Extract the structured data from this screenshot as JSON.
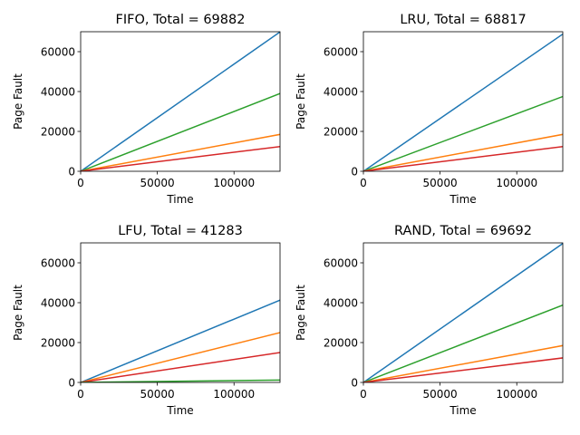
{
  "chart_data": [
    {
      "type": "line",
      "title": "FIFO, Total = 69882",
      "xlabel": "Time",
      "ylabel": "Page Fault",
      "xlim": [
        0,
        130000
      ],
      "ylim": [
        0,
        70000
      ],
      "xticks": [
        0,
        50000,
        100000
      ],
      "yticks": [
        0,
        20000,
        40000,
        60000
      ],
      "grid": false,
      "x": [
        0,
        130000
      ],
      "series": [
        {
          "color": "#1f77b4",
          "values": [
            0,
            69882
          ]
        },
        {
          "color": "#2ca02c",
          "values": [
            0,
            39000
          ]
        },
        {
          "color": "#ff7f0e",
          "values": [
            0,
            18500
          ]
        },
        {
          "color": "#d62728",
          "values": [
            0,
            12400
          ]
        }
      ]
    },
    {
      "type": "line",
      "title": "LRU, Total = 68817",
      "xlabel": "Time",
      "ylabel": "Page Fault",
      "xlim": [
        0,
        130000
      ],
      "ylim": [
        0,
        70000
      ],
      "xticks": [
        0,
        50000,
        100000
      ],
      "yticks": [
        0,
        20000,
        40000,
        60000
      ],
      "grid": false,
      "x": [
        0,
        130000
      ],
      "series": [
        {
          "color": "#1f77b4",
          "values": [
            0,
            68817
          ]
        },
        {
          "color": "#2ca02c",
          "values": [
            0,
            37500
          ]
        },
        {
          "color": "#ff7f0e",
          "values": [
            0,
            18500
          ]
        },
        {
          "color": "#d62728",
          "values": [
            0,
            12400
          ]
        }
      ]
    },
    {
      "type": "line",
      "title": "LFU, Total = 41283",
      "xlabel": "Time",
      "ylabel": "Page Fault",
      "xlim": [
        0,
        130000
      ],
      "ylim": [
        0,
        70000
      ],
      "xticks": [
        0,
        50000,
        100000
      ],
      "yticks": [
        0,
        20000,
        40000,
        60000
      ],
      "grid": false,
      "x": [
        0,
        130000
      ],
      "series": [
        {
          "color": "#1f77b4",
          "values": [
            0,
            41283
          ]
        },
        {
          "color": "#ff7f0e",
          "values": [
            0,
            25000
          ]
        },
        {
          "color": "#d62728",
          "values": [
            0,
            15000
          ]
        },
        {
          "color": "#2ca02c",
          "values": [
            0,
            1200
          ]
        }
      ]
    },
    {
      "type": "line",
      "title": "RAND, Total = 69692",
      "xlabel": "Time",
      "ylabel": "Page Fault",
      "xlim": [
        0,
        130000
      ],
      "ylim": [
        0,
        70000
      ],
      "xticks": [
        0,
        50000,
        100000
      ],
      "yticks": [
        0,
        20000,
        40000,
        60000
      ],
      "grid": false,
      "x": [
        0,
        130000
      ],
      "series": [
        {
          "color": "#1f77b4",
          "values": [
            0,
            69692
          ]
        },
        {
          "color": "#2ca02c",
          "values": [
            0,
            38800
          ]
        },
        {
          "color": "#ff7f0e",
          "values": [
            0,
            18500
          ]
        },
        {
          "color": "#d62728",
          "values": [
            0,
            12300
          ]
        }
      ]
    }
  ]
}
